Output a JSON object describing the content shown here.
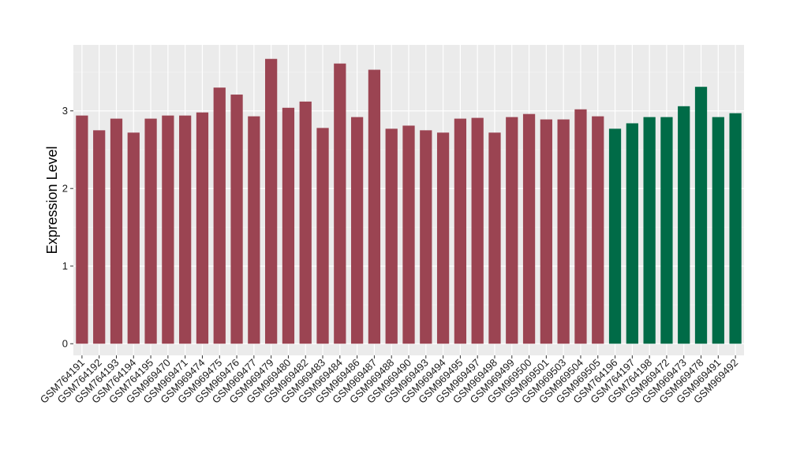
{
  "chart_data": {
    "type": "bar",
    "title": "",
    "xlabel": "",
    "ylabel": "Expression Level",
    "ylim": [
      -0.15,
      3.85
    ],
    "yticks": [
      0,
      1,
      2,
      3
    ],
    "grid": true,
    "legend": "none",
    "colors": {
      "group_1": "#9b4452",
      "group_2": "#006b47",
      "panel_background": "#ebebeb",
      "grid_major": "#ffffff"
    },
    "categories": [
      "GSM764191",
      "GSM764192",
      "GSM764193",
      "GSM764194",
      "GSM764195",
      "GSM969470",
      "GSM969471",
      "GSM969474",
      "GSM969475",
      "GSM969476",
      "GSM969477",
      "GSM969479",
      "GSM969480",
      "GSM969482",
      "GSM969483",
      "GSM969484",
      "GSM969486",
      "GSM969487",
      "GSM969488",
      "GSM969490",
      "GSM969493",
      "GSM969494",
      "GSM969495",
      "GSM969497",
      "GSM969498",
      "GSM969499",
      "GSM969500",
      "GSM969501",
      "GSM969503",
      "GSM969504",
      "GSM969505",
      "GSM764196",
      "GSM764197",
      "GSM764198",
      "GSM969472",
      "GSM969473",
      "GSM969478",
      "GSM969491",
      "GSM969492"
    ],
    "values": [
      2.94,
      2.75,
      2.9,
      2.72,
      2.9,
      2.94,
      2.94,
      2.98,
      3.3,
      3.21,
      2.93,
      3.67,
      3.04,
      3.12,
      2.78,
      3.61,
      2.92,
      3.53,
      2.77,
      2.81,
      2.75,
      2.72,
      2.9,
      2.91,
      2.72,
      2.92,
      2.96,
      2.89,
      2.89,
      3.02,
      2.93,
      2.77,
      2.84,
      2.92,
      2.92,
      3.06,
      3.31,
      2.92,
      2.97
    ],
    "groups": [
      1,
      1,
      1,
      1,
      1,
      1,
      1,
      1,
      1,
      1,
      1,
      1,
      1,
      1,
      1,
      1,
      1,
      1,
      1,
      1,
      1,
      1,
      1,
      1,
      1,
      1,
      1,
      1,
      1,
      1,
      1,
      2,
      2,
      2,
      2,
      2,
      2,
      2,
      2
    ]
  }
}
